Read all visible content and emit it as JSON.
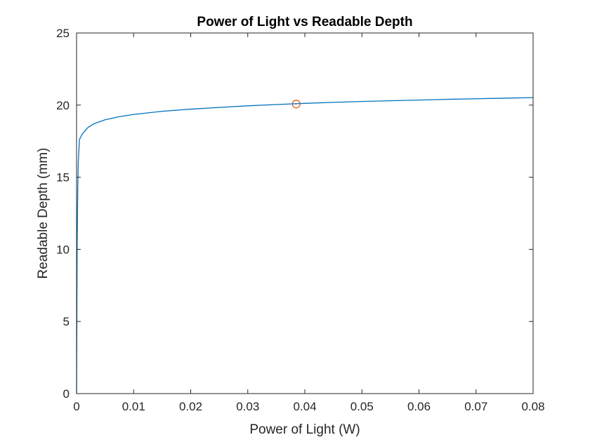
{
  "chart_data": {
    "type": "line",
    "title": "Power of Light vs Readable Depth",
    "xlabel": "Power of Light (W)",
    "ylabel": "Readable Depth (mm)",
    "xlim": [
      0,
      0.08
    ],
    "ylim": [
      0,
      25
    ],
    "xticks": [
      0,
      0.01,
      0.02,
      0.03,
      0.04,
      0.05,
      0.06,
      0.07,
      0.08
    ],
    "xtick_labels": [
      "0",
      "0.01",
      "0.02",
      "0.03",
      "0.04",
      "0.05",
      "0.06",
      "0.07",
      "0.08"
    ],
    "yticks": [
      0,
      5,
      10,
      15,
      20,
      25
    ],
    "ytick_labels": [
      "0",
      "5",
      "10",
      "15",
      "20",
      "25"
    ],
    "grid": false,
    "series": [
      {
        "color": "#0072BD",
        "marker": "none",
        "x": [
          0,
          0.0001,
          0.0002,
          0.0003,
          0.0005,
          0.001,
          0.002,
          0.003,
          0.005,
          0.0075,
          0.01,
          0.015,
          0.02,
          0.025,
          0.03,
          0.035,
          0.04,
          0.045,
          0.05,
          0.055,
          0.06,
          0.065,
          0.07,
          0.075,
          0.08
        ],
        "y": [
          0,
          10.0,
          14.0,
          16.0,
          17.6,
          18.0,
          18.45,
          18.7,
          18.98,
          19.2,
          19.35,
          19.57,
          19.72,
          19.84,
          19.95,
          20.04,
          20.12,
          20.19,
          20.25,
          20.3,
          20.35,
          20.4,
          20.44,
          20.48,
          20.52
        ]
      },
      {
        "color": "#D95319",
        "marker": "circle",
        "x": [
          0.0385
        ],
        "y": [
          20.07
        ]
      }
    ]
  }
}
